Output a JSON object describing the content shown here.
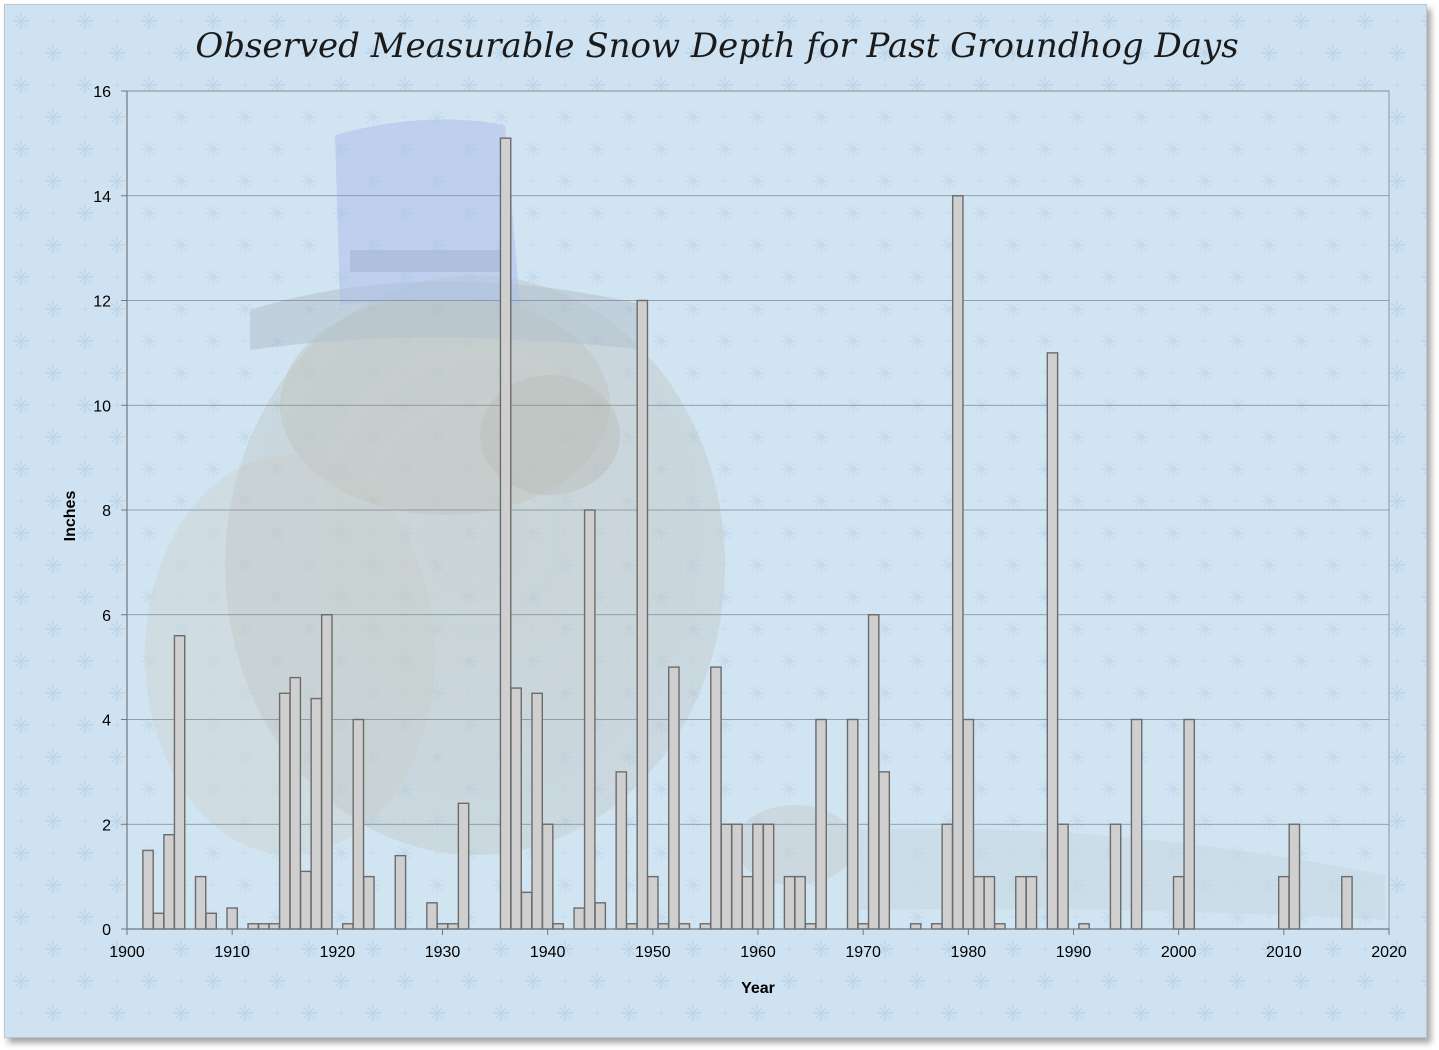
{
  "chart_data": {
    "type": "bar",
    "title": "Observed Measurable Snow Depth for Past Groundhog Days",
    "xlabel": "Year",
    "ylabel": "Inches",
    "xlim": [
      1900,
      2020
    ],
    "ylim": [
      0,
      16
    ],
    "x_ticks": [
      1900,
      1910,
      1920,
      1930,
      1940,
      1950,
      1960,
      1970,
      1980,
      1990,
      2000,
      2010,
      2020
    ],
    "y_ticks": [
      0,
      2,
      4,
      6,
      8,
      10,
      12,
      14,
      16
    ],
    "grid": true,
    "legend": "none",
    "bar_color": "#cfcfcf",
    "bar_edge_color": "#6b6b6b",
    "background_color": "#cfe2f1",
    "series": [
      {
        "x": [
          1902,
          1903,
          1904,
          1905,
          1907,
          1908,
          1910,
          1912,
          1913,
          1914,
          1915,
          1916,
          1917,
          1918,
          1919,
          1921,
          1922,
          1923,
          1926,
          1929,
          1930,
          1931,
          1932,
          1936,
          1937,
          1938,
          1939,
          1940,
          1941,
          1943,
          1944,
          1945,
          1947,
          1948,
          1949,
          1950,
          1951,
          1952,
          1953,
          1955,
          1956,
          1957,
          1958,
          1959,
          1960,
          1961,
          1963,
          1964,
          1965,
          1966,
          1969,
          1970,
          1971,
          1972,
          1975,
          1977,
          1978,
          1979,
          1980,
          1981,
          1982,
          1983,
          1985,
          1986,
          1988,
          1989,
          1991,
          1994,
          1996,
          2000,
          2001,
          2010,
          2011,
          2016
        ],
        "values": [
          1.5,
          0.3,
          1.8,
          5.6,
          1,
          0.3,
          0.4,
          0.1,
          0.1,
          0.1,
          4.5,
          4.8,
          1.1,
          4.4,
          6,
          0.1,
          4,
          1,
          1.4,
          0.5,
          0.1,
          0.1,
          2.4,
          15.1,
          4.6,
          0.7,
          4.5,
          2,
          0.1,
          0.4,
          8,
          0.5,
          3,
          0.1,
          12,
          1,
          0.1,
          5,
          0.1,
          0.1,
          5,
          2,
          2,
          1,
          2,
          2,
          1,
          1,
          0.1,
          4,
          4,
          0.1,
          6,
          3,
          0.1,
          0.1,
          2,
          14,
          4,
          1,
          1,
          0.1,
          1,
          1,
          11,
          2,
          0.1,
          2,
          4,
          1,
          4,
          1,
          2,
          1
        ]
      }
    ]
  }
}
